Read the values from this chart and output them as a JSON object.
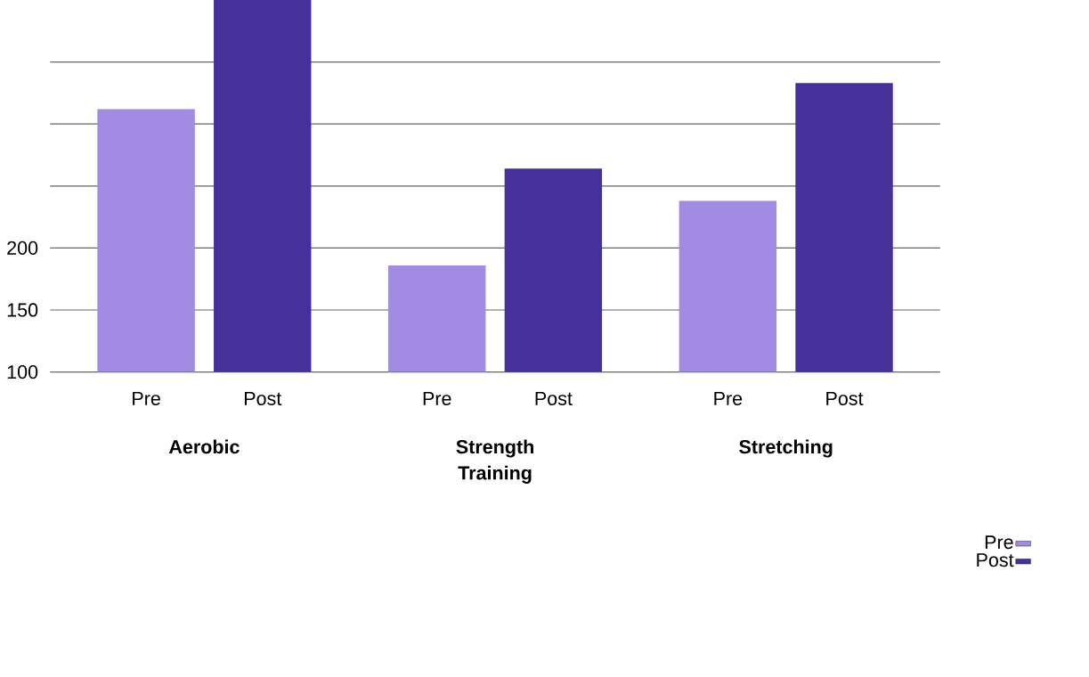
{
  "chart_data": {
    "type": "bar",
    "categories": [
      "**Aerobic**",
      "**Strength Training**",
      "**Stretching**"
    ],
    "series": [
      {
        "name": "Pre",
        "color": "#a28be3",
        "values": [
          312,
          186,
          238
        ]
      },
      {
        "name": "Post",
        "color": "#46309a",
        "values": [
          400,
          264,
          333
        ]
      }
    ],
    "ylim": [
      100,
      400
    ],
    "yticks": [
      100,
      150,
      200,
      {
        "value": 250,
        "label": null
      },
      {
        "value": 300,
        "label": null
      },
      {
        "value": 350,
        "label": null
      }
    ],
    "grid": "y",
    "legend": "bottom right"
  }
}
